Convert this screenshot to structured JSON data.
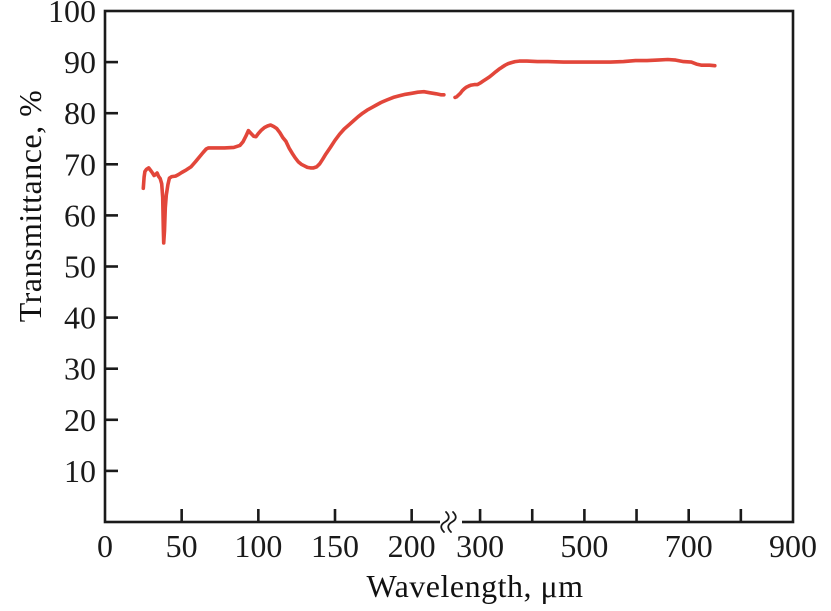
{
  "figure": {
    "background": "#ffffff",
    "axis_color": "#1a1a1a",
    "tick_label_color": "#1a1a1a"
  },
  "chart_data": {
    "type": "line",
    "title": "",
    "xlabel": "Wavelength, μm",
    "ylabel": "Transmittance, %",
    "ylim": [
      0,
      100
    ],
    "grid": false,
    "legend": false,
    "line_color": "#e2463a",
    "y_axis": {
      "tick_marks": [
        10,
        20,
        30,
        40,
        50,
        60,
        70,
        80,
        90
      ],
      "tick_labels": [
        {
          "v": 100,
          "t": "100"
        },
        {
          "v": 90,
          "t": "90"
        },
        {
          "v": 80,
          "t": "80"
        },
        {
          "v": 70,
          "t": "70"
        },
        {
          "v": 60,
          "t": "60"
        },
        {
          "v": 50,
          "t": "50"
        },
        {
          "v": 40,
          "t": "40"
        },
        {
          "v": 30,
          "t": "30"
        },
        {
          "v": 20,
          "t": "20"
        },
        {
          "v": 10,
          "t": "10"
        }
      ]
    },
    "x_axis": {
      "has_break": true,
      "break_symbol": "ʃʃ",
      "segments": [
        {
          "domain": [
            0,
            225
          ],
          "tick_marks": [
            50,
            100,
            150,
            200
          ],
          "tick_labels": [
            {
              "v": 0,
              "t": "0"
            },
            {
              "v": 50,
              "t": "50"
            },
            {
              "v": 100,
              "t": "100"
            },
            {
              "v": 150,
              "t": "150"
            },
            {
              "v": 200,
              "t": "200"
            }
          ]
        },
        {
          "domain": [
            250,
            900
          ],
          "tick_marks": [
            300,
            400,
            500,
            600,
            700,
            800
          ],
          "tick_labels": [
            {
              "v": 300,
              "t": "300"
            },
            {
              "v": 500,
              "t": "500"
            },
            {
              "v": 700,
              "t": "700"
            },
            {
              "v": 900,
              "t": "900"
            }
          ]
        }
      ]
    },
    "series": [
      {
        "name": "transmittance",
        "color": "#e2463a",
        "segments": [
          [
            [
              25,
              65.3
            ],
            [
              25.5,
              67.5
            ],
            [
              26,
              68.6
            ],
            [
              27,
              69.0
            ],
            [
              28.5,
              69.3
            ],
            [
              30,
              68.7
            ],
            [
              31,
              68.3
            ],
            [
              32,
              67.8
            ],
            [
              33,
              68.0
            ],
            [
              34,
              68.3
            ],
            [
              35,
              67.6
            ],
            [
              36,
              67.2
            ],
            [
              37,
              66.2
            ],
            [
              37.6,
              63.5
            ],
            [
              38,
              57.5
            ],
            [
              38.3,
              54.6
            ],
            [
              38.8,
              57.0
            ],
            [
              39.3,
              61.5
            ],
            [
              40,
              64.0
            ],
            [
              41,
              66.0
            ],
            [
              42,
              67.3
            ],
            [
              43.5,
              67.6
            ],
            [
              46,
              67.7
            ],
            [
              48,
              68.0
            ],
            [
              50,
              68.4
            ],
            [
              53,
              68.9
            ],
            [
              56,
              69.5
            ],
            [
              59,
              70.5
            ],
            [
              62,
              71.6
            ],
            [
              64,
              72.3
            ],
            [
              66,
              73.0
            ],
            [
              67.5,
              73.2
            ],
            [
              72,
              73.2
            ],
            [
              78,
              73.2
            ],
            [
              84,
              73.3
            ],
            [
              88,
              73.7
            ],
            [
              90,
              74.4
            ],
            [
              92,
              75.6
            ],
            [
              93.5,
              76.6
            ],
            [
              95,
              76.1
            ],
            [
              97,
              75.5
            ],
            [
              98.5,
              75.4
            ],
            [
              100,
              76.0
            ],
            [
              102,
              76.7
            ],
            [
              104,
              77.2
            ],
            [
              106,
              77.5
            ],
            [
              108,
              77.7
            ],
            [
              110,
              77.4
            ],
            [
              112,
              77.0
            ],
            [
              114,
              76.2
            ],
            [
              116,
              75.2
            ],
            [
              118,
              74.5
            ],
            [
              120,
              73.2
            ],
            [
              122,
              72.2
            ],
            [
              124,
              71.3
            ],
            [
              126,
              70.5
            ],
            [
              128,
              70.0
            ],
            [
              130,
              69.7
            ],
            [
              132,
              69.4
            ],
            [
              134,
              69.3
            ],
            [
              136,
              69.3
            ],
            [
              138,
              69.5
            ],
            [
              140,
              70.1
            ],
            [
              142,
              71.0
            ],
            [
              144,
              72.0
            ],
            [
              147,
              73.3
            ],
            [
              150,
              74.7
            ],
            [
              153,
              75.9
            ],
            [
              156,
              76.9
            ],
            [
              159,
              77.7
            ],
            [
              162,
              78.5
            ],
            [
              165,
              79.3
            ],
            [
              168,
              80.0
            ],
            [
              171,
              80.6
            ],
            [
              174,
              81.1
            ],
            [
              177,
              81.6
            ],
            [
              180,
              82.1
            ],
            [
              184,
              82.6
            ],
            [
              188,
              83.1
            ],
            [
              192,
              83.4
            ],
            [
              196,
              83.7
            ],
            [
              200,
              83.9
            ],
            [
              204,
              84.1
            ],
            [
              208,
              84.2
            ],
            [
              212,
              84.0
            ],
            [
              216,
              83.8
            ],
            [
              219,
              83.6
            ],
            [
              221,
              83.6
            ]
          ],
          [
            [
              252,
              83.1
            ],
            [
              255,
              83.2
            ],
            [
              258,
              83.5
            ],
            [
              262,
              83.9
            ],
            [
              266,
              84.4
            ],
            [
              270,
              84.8
            ],
            [
              274,
              85.1
            ],
            [
              278,
              85.3
            ],
            [
              283,
              85.5
            ],
            [
              289,
              85.6
            ],
            [
              295,
              85.6
            ],
            [
              300,
              85.9
            ],
            [
              306,
              86.3
            ],
            [
              312,
              86.7
            ],
            [
              318,
              87.1
            ],
            [
              324,
              87.6
            ],
            [
              330,
              88.1
            ],
            [
              336,
              88.6
            ],
            [
              342,
              89.0
            ],
            [
              348,
              89.4
            ],
            [
              354,
              89.7
            ],
            [
              360,
              89.9
            ],
            [
              367,
              90.1
            ],
            [
              375,
              90.2
            ],
            [
              390,
              90.2
            ],
            [
              410,
              90.1
            ],
            [
              430,
              90.1
            ],
            [
              460,
              90.0
            ],
            [
              490,
              90.0
            ],
            [
              520,
              90.0
            ],
            [
              550,
              90.0
            ],
            [
              575,
              90.1
            ],
            [
              598,
              90.3
            ],
            [
              620,
              90.3
            ],
            [
              640,
              90.4
            ],
            [
              660,
              90.5
            ],
            [
              675,
              90.4
            ],
            [
              690,
              90.1
            ],
            [
              705,
              90.0
            ],
            [
              715,
              89.6
            ],
            [
              725,
              89.4
            ],
            [
              740,
              89.4
            ],
            [
              750,
              89.3
            ]
          ]
        ]
      }
    ]
  }
}
